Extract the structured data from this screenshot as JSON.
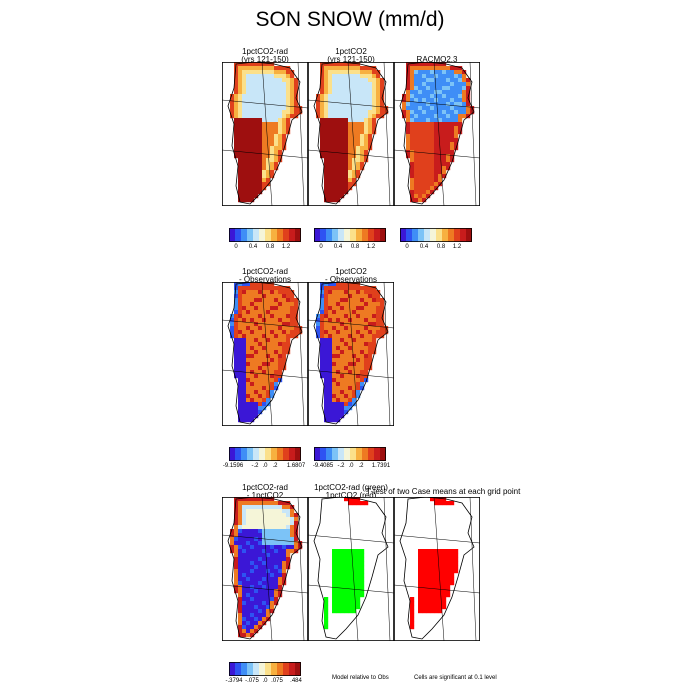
{
  "title": "SON SNOW (mm/d)",
  "colors": {
    "abs_scale": [
      "#3b17d6",
      "#2e53f2",
      "#3f8ef6",
      "#7cc3f7",
      "#c8e6f8",
      "#f5f5d8",
      "#fbe08a",
      "#f7b040",
      "#ee7a22",
      "#e0401c",
      "#c81c1c",
      "#9e0f0f"
    ],
    "diff_scale": [
      "#3b17d6",
      "#2e53f2",
      "#3f8ef6",
      "#7cc3f7",
      "#c8e6f8",
      "#f5f5d8",
      "#fbe08a",
      "#f7b040",
      "#ee7a22",
      "#e0401c",
      "#c81c1c",
      "#9e0f0f"
    ],
    "sig_green": "#00ff00",
    "sig_red": "#ff0000"
  },
  "chart_data": [
    {
      "type": "heatmap",
      "title_lines": [
        "1pctCO2-rad",
        "(yrs 121-150)"
      ],
      "fill": "abs"
    },
    {
      "type": "heatmap",
      "title_lines": [
        "1pctCO2",
        "(yrs 121-150)"
      ],
      "fill": "abs"
    },
    {
      "type": "heatmap",
      "title_lines": [
        "RACMO2.3",
        ""
      ],
      "fill": "obs"
    },
    {
      "type": "heatmap",
      "title_lines": [
        "1pctCO2-rad",
        "- Observations"
      ],
      "fill": "diff"
    },
    {
      "type": "heatmap",
      "title_lines": [
        "1pctCO2",
        "- Observations"
      ],
      "fill": "diff"
    },
    {
      "type": "heatmap",
      "title_lines": [
        "1pctCO2-rad",
        "- 1pctCO2"
      ],
      "fill": "dd"
    },
    {
      "type": "heatmap",
      "title_lines": [
        "1pctCO2-rad (green)",
        "1pctCO2 (red)"
      ],
      "fill": "sig2"
    },
    {
      "type": "heatmap",
      "title_lines": [
        "T-test of two Case means at each grid point",
        ""
      ],
      "fill": "sig1"
    }
  ],
  "colorbars": [
    {
      "labels": [
        "0",
        "0.4",
        "0.8",
        "1.2"
      ]
    },
    {
      "labels": [
        "0",
        "0.4",
        "0.8",
        "1.2"
      ]
    },
    {
      "labels": [
        "0",
        "0.4",
        "0.8",
        "1.2"
      ]
    },
    {
      "labels": [
        "-9.1596",
        "-.2",
        ".0",
        ".2",
        "1.6807"
      ]
    },
    {
      "labels": [
        "-9.4085",
        "-.2",
        ".0",
        ".2",
        "1.7391"
      ]
    },
    {
      "labels": [
        "-.3794",
        "-.075",
        ".0",
        ".075",
        ".484"
      ]
    }
  ],
  "notes": {
    "model_relative": "Model relative to Obs",
    "cells_significant": "Cells are significant at 0.1 level"
  }
}
